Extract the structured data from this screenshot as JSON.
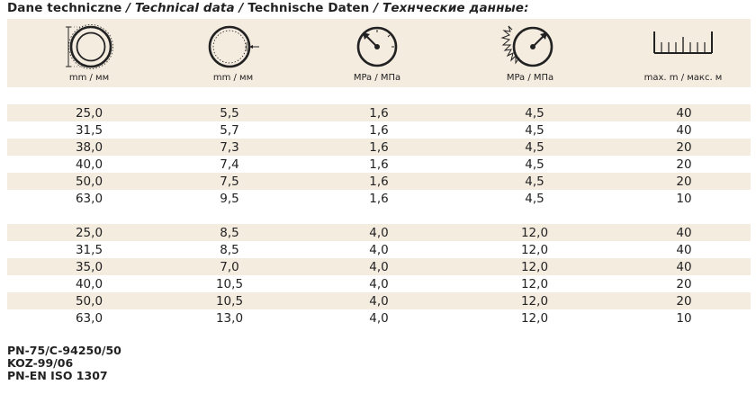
{
  "title": {
    "pl": "Dane techniczne",
    "sep1": " / ",
    "en": "Technical data",
    "sep2": " / ",
    "de": "Technische Daten",
    "sep3": " / ",
    "ru": "Технческие данные:"
  },
  "columns": [
    {
      "icon": "inner-diameter-icon",
      "unit": "mm / мм"
    },
    {
      "icon": "wall-thickness-icon",
      "unit": "mm / мм"
    },
    {
      "icon": "working-pressure-gauge-icon",
      "unit": "MPa / МПа"
    },
    {
      "icon": "burst-pressure-gauge-icon",
      "unit": "MPa / МПа"
    },
    {
      "icon": "length-ruler-icon",
      "unit": "max. m / макс. м"
    }
  ],
  "groups": [
    {
      "rows": [
        [
          "25,0",
          "5,5",
          "1,6",
          "4,5",
          "40"
        ],
        [
          "31,5",
          "5,7",
          "1,6",
          "4,5",
          "40"
        ],
        [
          "38,0",
          "7,3",
          "1,6",
          "4,5",
          "20"
        ],
        [
          "40,0",
          "7,4",
          "1,6",
          "4,5",
          "20"
        ],
        [
          "50,0",
          "7,5",
          "1,6",
          "4,5",
          "20"
        ],
        [
          "63,0",
          "9,5",
          "1,6",
          "4,5",
          "10"
        ]
      ]
    },
    {
      "rows": [
        [
          "25,0",
          "8,5",
          "4,0",
          "12,0",
          "40"
        ],
        [
          "31,5",
          "8,5",
          "4,0",
          "12,0",
          "40"
        ],
        [
          "35,0",
          "7,0",
          "4,0",
          "12,0",
          "40"
        ],
        [
          "40,0",
          "10,5",
          "4,0",
          "12,0",
          "20"
        ],
        [
          "50,0",
          "10,5",
          "4,0",
          "12,0",
          "20"
        ],
        [
          "63,0",
          "13,0",
          "4,0",
          "12,0",
          "10"
        ]
      ]
    }
  ],
  "standards": [
    "PN-75/C-94250/50",
    "KOZ-99/06",
    "PN-EN ISO 1307"
  ],
  "colors": {
    "row_shade": "#f5ece0",
    "text": "#222222"
  }
}
